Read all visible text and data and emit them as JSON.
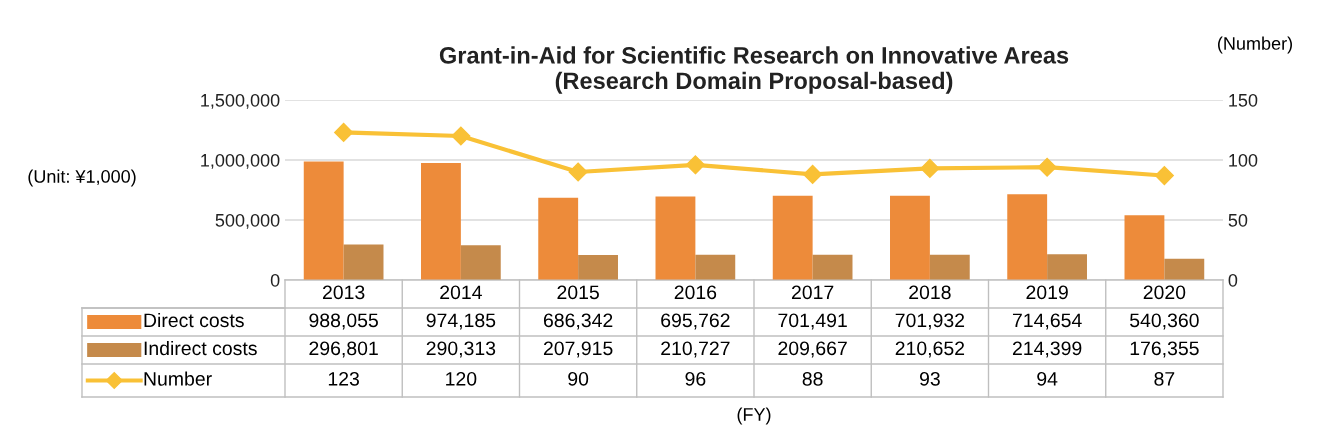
{
  "chart_data": {
    "type": "bar",
    "title": "Grant-in-Aid for Scientific Research on Innovative Areas\n(Research Domain Proposal-based)",
    "ylabel": "(Unit: ¥1,000)",
    "y2label": "(Number)",
    "annotations": [
      "(FY)"
    ],
    "categories": [
      "2013",
      "2014",
      "2015",
      "2016",
      "2017",
      "2018",
      "2019",
      "2020"
    ],
    "series": [
      {
        "name": "Direct costs",
        "color": "#ed8b3a",
        "values": [
          988055,
          974185,
          686342,
          695762,
          701491,
          701932,
          714654,
          540360
        ],
        "value_labels": [
          "988,055",
          "974,185",
          "686,342",
          "695,762",
          "701,491",
          "701,932",
          "714,654",
          "540,360"
        ]
      },
      {
        "name": "Indirect costs",
        "color": "#c58a4b",
        "values": [
          296801,
          290313,
          207915,
          210727,
          209667,
          210652,
          214399,
          176355
        ],
        "value_labels": [
          "296,801",
          "290,313",
          "207,915",
          "210,727",
          "209,667",
          "210,652",
          "214,399",
          "176,355"
        ]
      },
      {
        "name": "Number",
        "type": "line",
        "axis": "y2",
        "color": "#f9c136",
        "marker": "diamond",
        "values": [
          123,
          120,
          90,
          96,
          88,
          93,
          94,
          87
        ],
        "value_labels": [
          "123",
          "120",
          "90",
          "96",
          "88",
          "93",
          "94",
          "87"
        ]
      }
    ],
    "ylim": [
      0,
      1500000
    ],
    "yticks": [
      {
        "value": 0,
        "label": "0"
      },
      {
        "value": 500000,
        "label": "500,000"
      },
      {
        "value": 1000000,
        "label": "1,000,000"
      },
      {
        "value": 1500000,
        "label": "1,500,000"
      }
    ],
    "y2lim": [
      0,
      150
    ],
    "y2ticks": [
      0,
      50,
      100,
      150
    ],
    "grid": "y",
    "legend": "bottom"
  }
}
